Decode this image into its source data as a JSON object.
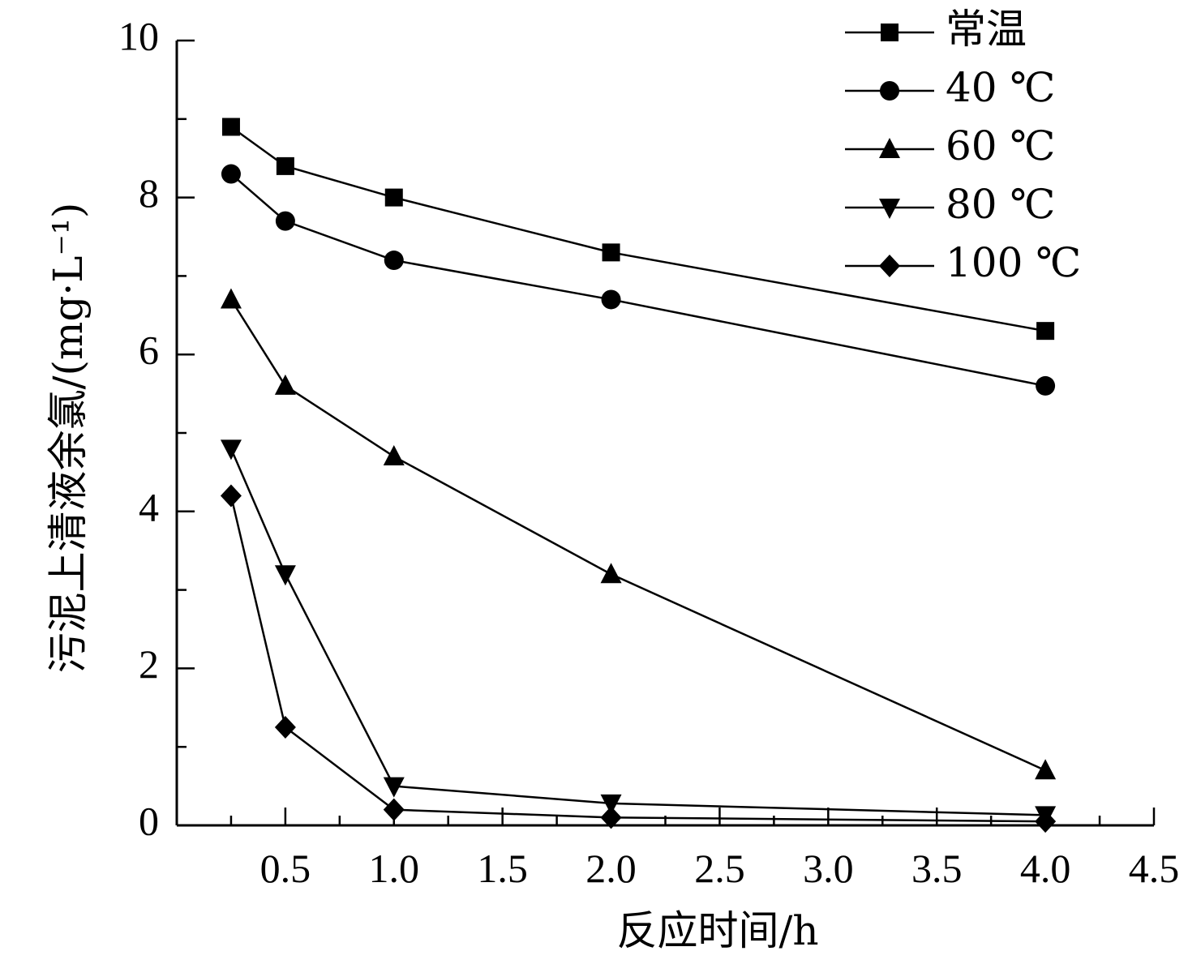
{
  "chart_data": {
    "type": "line",
    "title": "",
    "xlabel": "反应时间/h",
    "ylabel": "污泥上清液余氯/(mg·L⁻¹)",
    "xlim": [
      0,
      4.5
    ],
    "ylim": [
      0,
      10
    ],
    "xticks": [
      0.5,
      1.0,
      1.5,
      2.0,
      2.5,
      3.0,
      3.5,
      4.0,
      4.5
    ],
    "xtick_labels": [
      "0.5",
      "1.0",
      "1.5",
      "2.0",
      "2.5",
      "3.0",
      "3.5",
      "4.0",
      "4.5"
    ],
    "yticks": [
      0,
      2,
      4,
      6,
      8,
      10
    ],
    "ytick_labels": [
      "0",
      "2",
      "4",
      "6",
      "8",
      "10"
    ],
    "grid": false,
    "legend_position": "top-right",
    "series": [
      {
        "name": "常温",
        "marker": "square",
        "x": [
          0.25,
          0.5,
          1.0,
          2.0,
          4.0
        ],
        "y": [
          8.9,
          8.4,
          8.0,
          7.3,
          6.3
        ]
      },
      {
        "name": "40 ℃",
        "marker": "circle",
        "x": [
          0.25,
          0.5,
          1.0,
          2.0,
          4.0
        ],
        "y": [
          8.3,
          7.7,
          7.2,
          6.7,
          5.6
        ]
      },
      {
        "name": "60 ℃",
        "marker": "triangle-up",
        "x": [
          0.25,
          0.5,
          1.0,
          2.0,
          4.0
        ],
        "y": [
          6.7,
          5.6,
          4.7,
          3.2,
          0.7
        ]
      },
      {
        "name": "80 ℃",
        "marker": "triangle-down",
        "x": [
          0.25,
          0.5,
          1.0,
          2.0,
          4.0
        ],
        "y": [
          4.8,
          3.2,
          0.5,
          0.28,
          0.13
        ]
      },
      {
        "name": "100 ℃",
        "marker": "diamond",
        "x": [
          0.25,
          0.5,
          1.0,
          2.0,
          4.0
        ],
        "y": [
          4.2,
          1.25,
          0.2,
          0.1,
          0.05
        ]
      }
    ],
    "colors": {
      "line": "#000000",
      "marker": "#000000",
      "background": "#ffffff"
    }
  }
}
